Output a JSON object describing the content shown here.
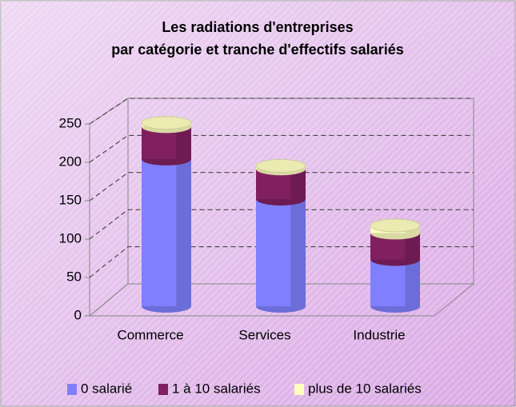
{
  "chart_data": {
    "type": "bar3d_stacked_cylinder",
    "title": [
      "Les radiations d'entreprises",
      "par catégorie et tranche d'effectifs salariés"
    ],
    "categories": [
      "Commerce",
      "Services",
      "Industrie"
    ],
    "series": [
      {
        "name": "0 salarié",
        "color": "#8080ff",
        "values": [
          195,
          142,
          62
        ]
      },
      {
        "name": "1 à 10 salariés",
        "color": "#802060",
        "values": [
          43,
          40,
          35
        ]
      },
      {
        "name": "plus de 10 salariés",
        "color": "#ffffc0",
        "values": [
          5,
          4,
          10
        ]
      }
    ],
    "ylim": [
      0,
      250
    ],
    "yticks": [
      0,
      50,
      100,
      150,
      200,
      250
    ],
    "grid": true,
    "legend": "bottom"
  }
}
